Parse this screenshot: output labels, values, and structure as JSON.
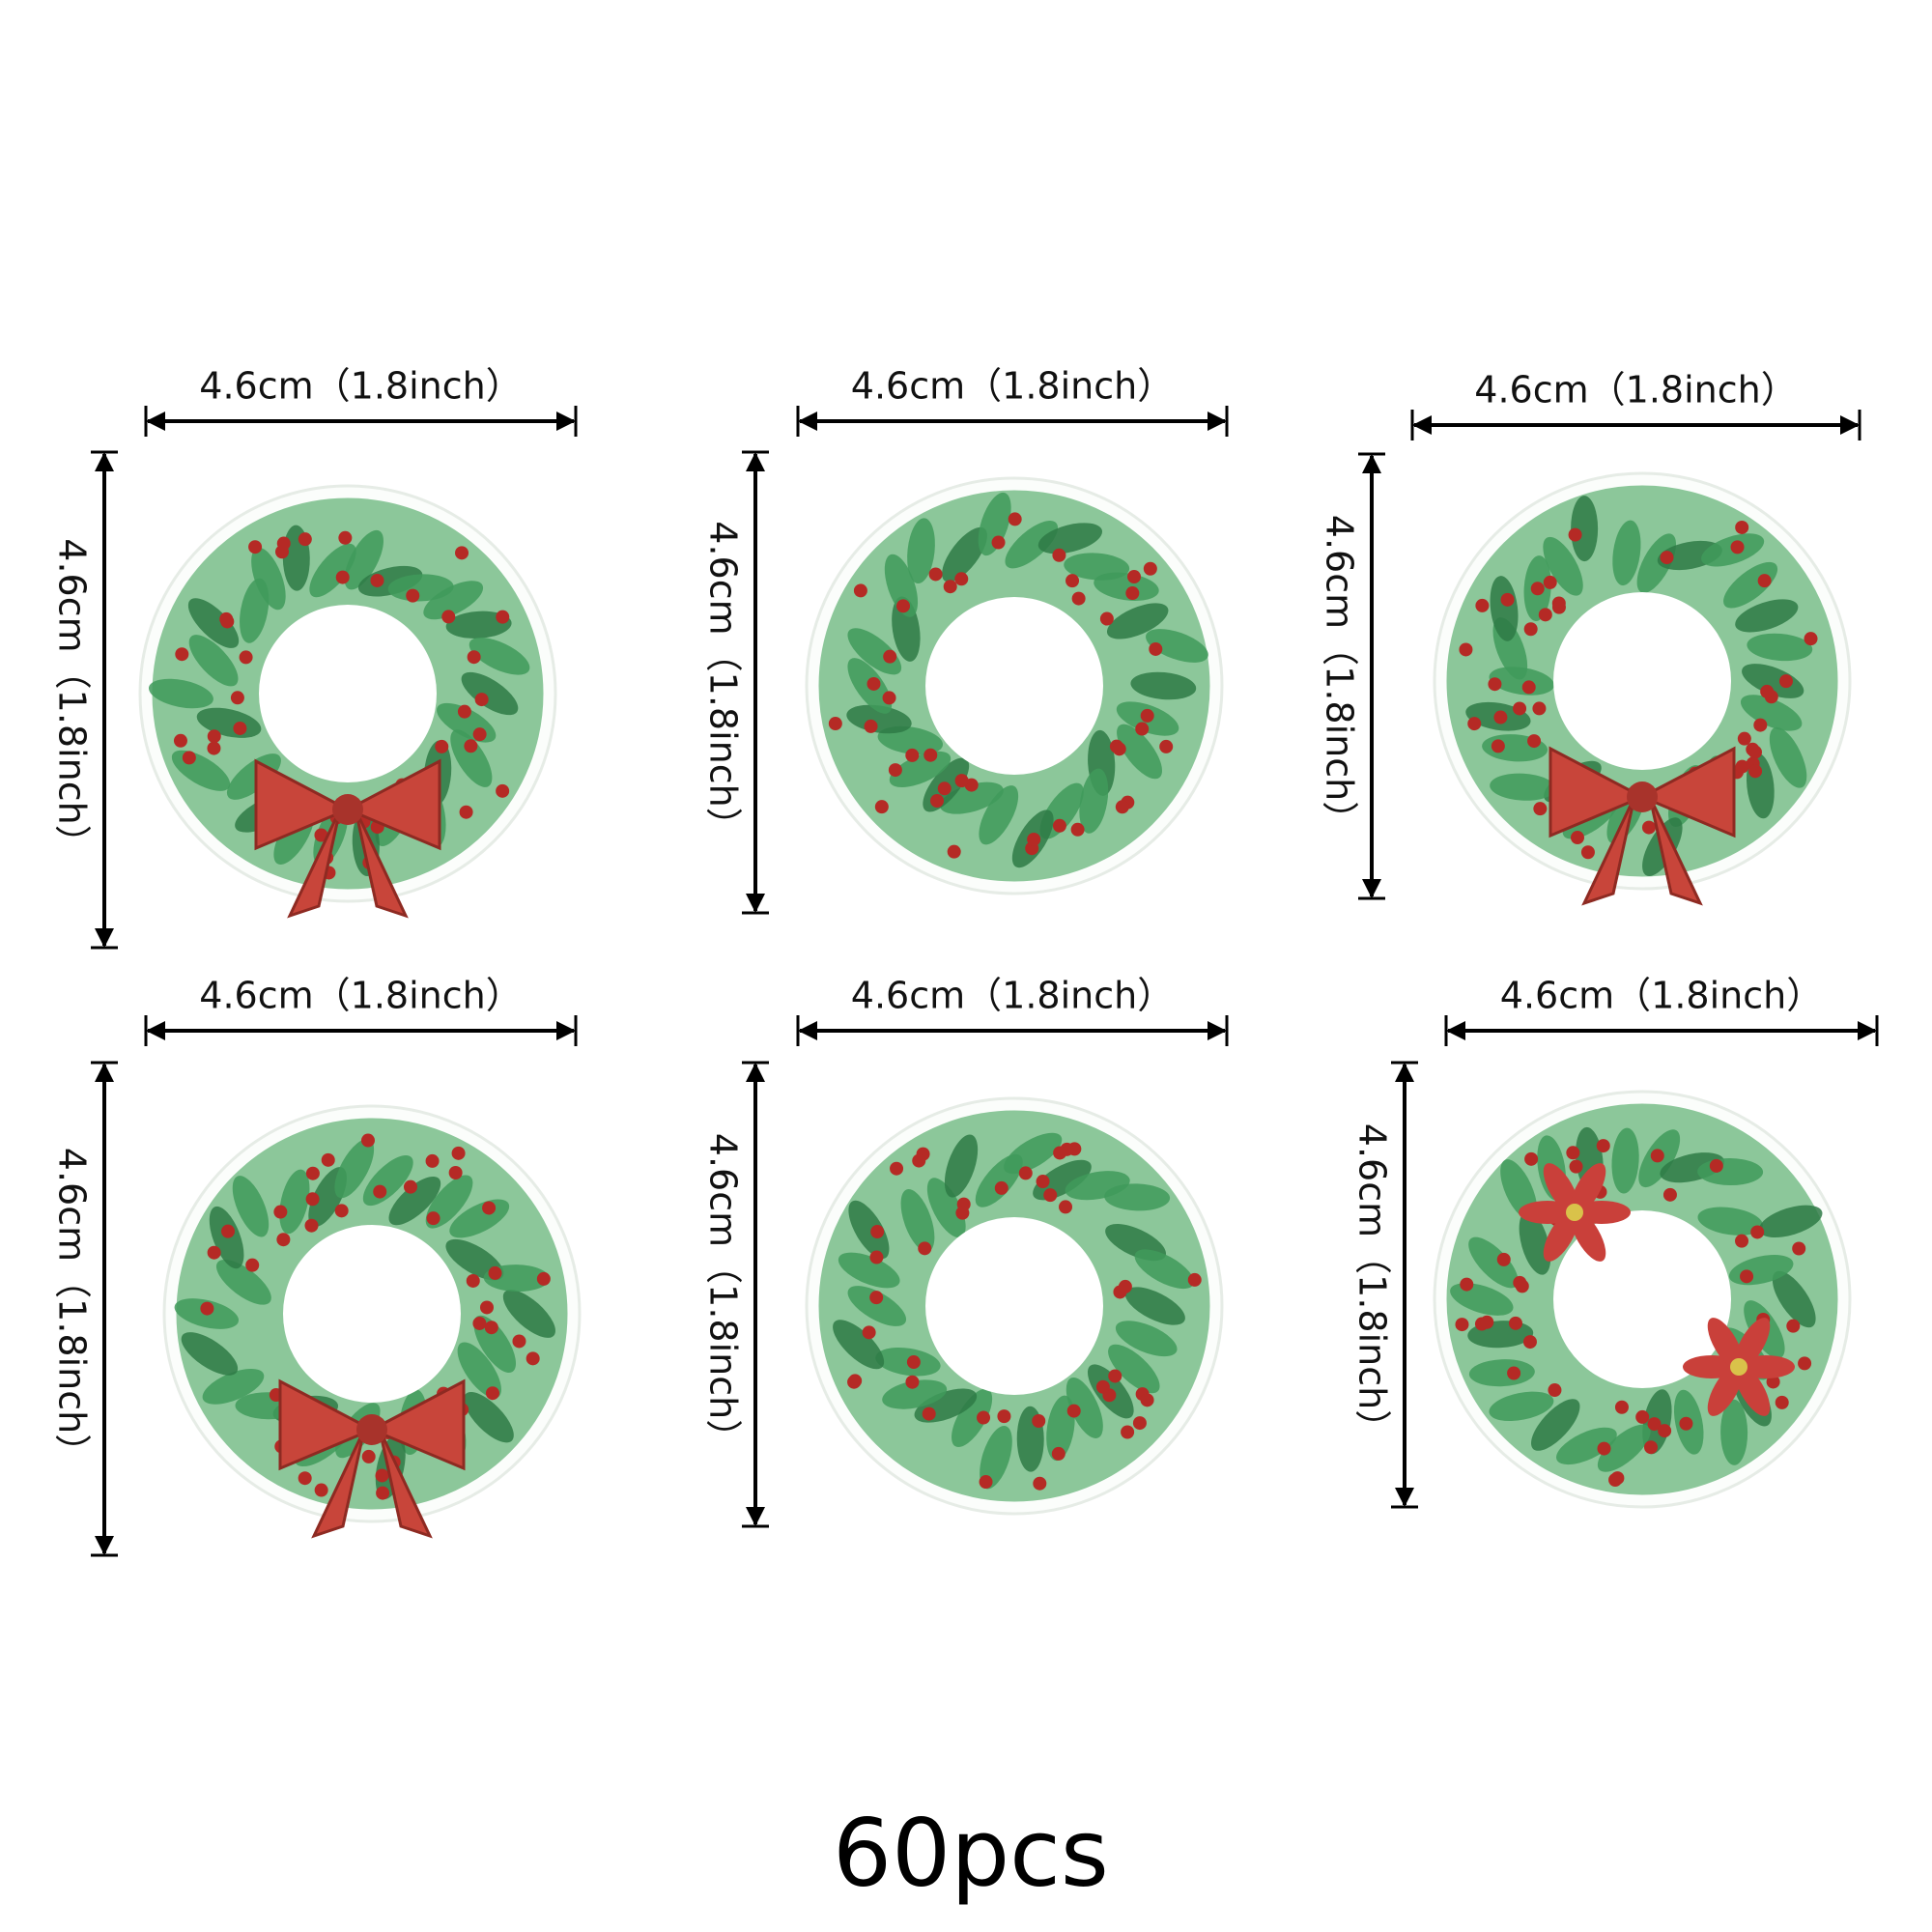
{
  "items": [
    {
      "width_label": "4.6cm（1.8inch）",
      "height_label": "4.6cm（1.8inch）"
    },
    {
      "width_label": "4.6cm（1.8inch）",
      "height_label": "4.6cm（1.8inch）"
    },
    {
      "width_label": "4.6cm（1.8inch）",
      "height_label": "4.6cm（1.8inch）"
    },
    {
      "width_label": "4.6cm（1.8inch）",
      "height_label": "4.6cm（1.8inch）"
    },
    {
      "width_label": "4.6cm（1.8inch）",
      "height_label": "4.6cm（1.8inch）"
    },
    {
      "width_label": "4.6cm（1.8inch）",
      "height_label": "4.6cm（1.8inch）"
    }
  ],
  "caption": "60pcs"
}
